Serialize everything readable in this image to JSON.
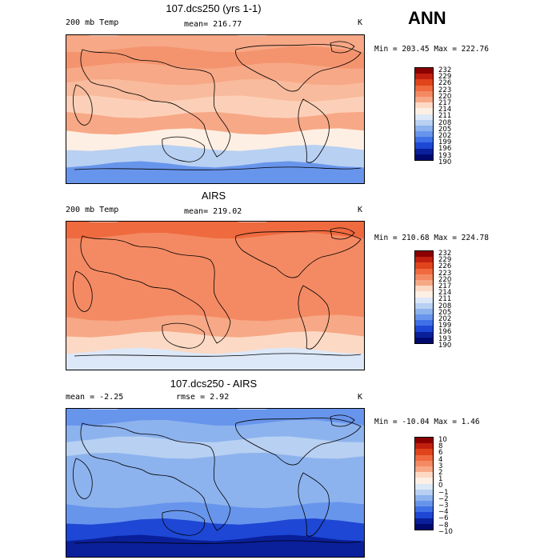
{
  "season": "ANN",
  "panels": [
    {
      "title": "107.dcs250 (yrs 1-1)",
      "left_label": "200 mb Temp",
      "center_label": "mean= 216.77",
      "right_label": "K",
      "minmax": "Min = 203.45 Max = 222.76",
      "colorbar": {
        "labels": [
          "232",
          "229",
          "226",
          "223",
          "220",
          "217",
          "214",
          "211",
          "208",
          "205",
          "202",
          "199",
          "196",
          "193",
          "190"
        ],
        "colors": [
          "#8b0000",
          "#c1200f",
          "#e0441b",
          "#ef6a3f",
          "#f48a63",
          "#f7a886",
          "#fcd9c4",
          "#fdefe4",
          "#dce8f8",
          "#b8d0f2",
          "#8db3ee",
          "#6895ec",
          "#3f70e6",
          "#1d47d4",
          "#0a1f9a",
          "#000a6e"
        ]
      }
    },
    {
      "title": "AIRS",
      "left_label": "200 mb Temp",
      "center_label": "mean= 219.02",
      "right_label": "K",
      "minmax": "Min = 210.68 Max = 224.78",
      "colorbar": {
        "labels": [
          "232",
          "229",
          "226",
          "223",
          "220",
          "217",
          "214",
          "211",
          "208",
          "205",
          "202",
          "199",
          "196",
          "193",
          "190"
        ],
        "colors": [
          "#8b0000",
          "#c1200f",
          "#e0441b",
          "#ef6a3f",
          "#f48a63",
          "#f7a886",
          "#fcd9c4",
          "#fdefe4",
          "#dce8f8",
          "#b8d0f2",
          "#8db3ee",
          "#6895ec",
          "#3f70e6",
          "#1d47d4",
          "#0a1f9a",
          "#000a6e"
        ]
      }
    },
    {
      "title": "107.dcs250 - AIRS",
      "left_label": "mean =   -2.25",
      "center_label": "rmse =   2.92",
      "right_label": "K",
      "minmax": "Min = -10.04 Max =   1.46",
      "colorbar": {
        "labels": [
          "10",
          "8",
          "6",
          "4",
          "3",
          "2",
          "1",
          "0",
          "−1",
          "−2",
          "−3",
          "−4",
          "−6",
          "−8",
          "−10"
        ],
        "colors": [
          "#8b0000",
          "#c1200f",
          "#e0441b",
          "#ef6a3f",
          "#f48a63",
          "#f7a886",
          "#fcd9c4",
          "#fdefe4",
          "#dce8f8",
          "#b8d0f2",
          "#8db3ee",
          "#6895ec",
          "#3f70e6",
          "#1d47d4",
          "#0a1f9a",
          "#000a6e"
        ]
      }
    }
  ],
  "map_fields": {
    "panel0": [
      "#f7a886",
      "#f4946e",
      "#f7a886",
      "#f9bb9d",
      "#fcd0b8",
      "#f7a886",
      "#fdefe4",
      "#b8d0f2",
      "#6895ec"
    ],
    "panel1": [
      "#ef6a3f",
      "#f48a63",
      "#f48a63",
      "#f48a63",
      "#f48a63",
      "#f48a63",
      "#f7a886",
      "#fcd9c4",
      "#dce8f8"
    ],
    "panel2": [
      "#6895ec",
      "#8db3ee",
      "#b8d0f2",
      "#8db3ee",
      "#8db3ee",
      "#8db3ee",
      "#6895ec",
      "#1d47d4",
      "#0a1f9a"
    ]
  }
}
